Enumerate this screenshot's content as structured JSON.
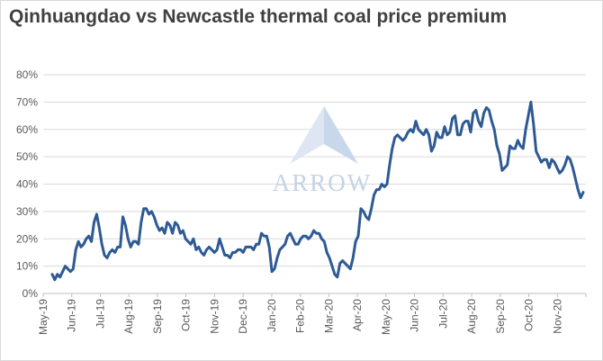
{
  "chart_data": {
    "type": "line",
    "title": "Qinhuangdao vs Newcastle thermal coal price premium",
    "ylim": [
      0,
      80
    ],
    "ytick_labels": [
      "0%",
      "10%",
      "20%",
      "30%",
      "40%",
      "50%",
      "60%",
      "70%",
      "80%"
    ],
    "xtick_labels": [
      "May-19",
      "Jun-19",
      "Jul-19",
      "Aug-19",
      "Sep-19",
      "Oct-19",
      "Nov-19",
      "Dec-19",
      "Jan-20",
      "Feb-20",
      "Mar-20",
      "Apr-20",
      "May-20",
      "Jun-20",
      "Jul-20",
      "Aug-20",
      "Sep-20",
      "Oct-20",
      "Nov-20"
    ],
    "grid": true,
    "legend": "none",
    "watermark": "ARROW",
    "line_color": "#2e5a94",
    "series": [
      {
        "values": [
          7,
          5,
          7,
          6,
          8,
          10,
          9,
          8,
          9,
          16,
          19,
          17,
          18,
          20,
          21,
          19,
          26,
          29,
          24,
          18,
          14,
          13,
          15,
          16,
          15,
          17,
          17,
          28,
          25,
          20,
          17,
          19,
          19,
          18,
          26,
          31,
          31,
          29,
          30,
          28,
          25,
          23,
          24,
          22,
          26,
          25,
          22,
          26,
          25,
          22,
          23,
          20,
          19,
          18,
          20,
          16,
          17,
          15,
          14,
          16,
          17,
          16,
          15,
          16,
          20,
          17,
          14,
          14,
          13,
          15,
          15,
          16,
          16,
          15,
          17,
          17,
          17,
          16,
          18,
          18,
          22,
          21,
          21,
          17,
          8,
          9,
          13,
          16,
          17,
          18,
          21,
          22,
          20,
          18,
          18,
          20,
          21,
          21,
          20,
          21,
          23,
          22,
          22,
          20,
          19,
          15,
          13,
          10,
          7,
          6,
          11,
          12,
          11,
          10,
          9,
          13,
          19,
          21,
          31,
          30,
          28,
          27,
          31,
          36,
          38,
          38,
          40,
          39,
          40,
          47,
          53,
          57,
          58,
          57,
          56,
          57,
          59,
          60,
          59,
          63,
          60,
          59,
          58,
          60,
          58,
          52,
          54,
          59,
          57,
          57,
          61,
          58,
          59,
          64,
          65,
          58,
          58,
          62,
          63,
          63,
          59,
          66,
          67,
          63,
          61,
          66,
          68,
          67,
          63,
          60,
          54,
          51,
          45,
          46,
          47,
          54,
          53,
          53,
          56,
          54,
          53,
          60,
          65,
          70,
          62,
          52,
          50,
          48,
          49,
          49,
          46,
          49,
          48,
          46,
          44,
          45,
          47,
          50,
          49,
          46,
          42,
          38,
          35,
          37
        ]
      }
    ]
  }
}
